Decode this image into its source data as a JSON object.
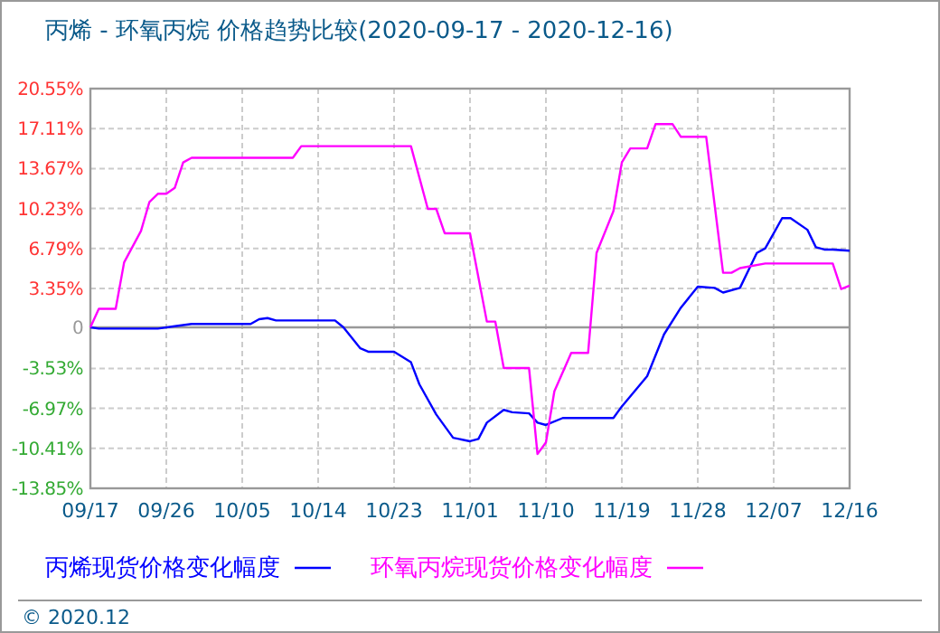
{
  "chart_data": {
    "type": "line",
    "title": "丙烯 - 环氧丙烷 价格趋势比较(2020-09-17 - 2020-12-16)",
    "xlim": [
      "2020-09-17",
      "2020-12-16"
    ],
    "xticks": [
      {
        "value": "2020-09-17",
        "label": "09/17"
      },
      {
        "value": "2020-09-26",
        "label": "09/26"
      },
      {
        "value": "2020-10-05",
        "label": "10/05"
      },
      {
        "value": "2020-10-14",
        "label": "10/14"
      },
      {
        "value": "2020-10-23",
        "label": "10/23"
      },
      {
        "value": "2020-11-01",
        "label": "11/01"
      },
      {
        "value": "2020-11-10",
        "label": "11/10"
      },
      {
        "value": "2020-11-19",
        "label": "11/19"
      },
      {
        "value": "2020-11-28",
        "label": "11/28"
      },
      {
        "value": "2020-12-07",
        "label": "12/07"
      },
      {
        "value": "2020-12-16",
        "label": "12/16"
      }
    ],
    "ylim": [
      -13.85,
      20.55
    ],
    "yticks": [
      {
        "value": -13.85,
        "label": "-13.85%"
      },
      {
        "value": -10.41,
        "label": "-10.41%"
      },
      {
        "value": -6.97,
        "label": "-6.97%"
      },
      {
        "value": -3.53,
        "label": "-3.53%"
      },
      0,
      {
        "value": 3.35,
        "label": "3.35%"
      },
      {
        "value": 6.79,
        "label": "6.79%"
      },
      {
        "value": 10.23,
        "label": "10.23%"
      },
      {
        "value": 13.67,
        "label": "13.67%"
      },
      {
        "value": 17.11,
        "label": "17.11%"
      },
      {
        "value": 20.55,
        "label": "20.55%"
      }
    ],
    "grid": true,
    "legend": "bottom",
    "marker": "none",
    "line_style": "solid",
    "ref_lines": [
      {
        "axis": "y",
        "value": 0,
        "color": "#999999"
      }
    ],
    "annotations": [
      "© 2020.12"
    ],
    "series": [
      {
        "name": "丙烯现货价格变化幅度",
        "color": "#0000ff",
        "x": [
          "2020-09-17",
          "2020-09-18",
          "2020-09-25",
          "2020-09-27",
          "2020-09-29",
          "2020-10-06",
          "2020-10-07",
          "2020-10-08",
          "2020-10-09",
          "2020-10-16",
          "2020-10-17",
          "2020-10-19",
          "2020-10-20",
          "2020-10-23",
          "2020-10-25",
          "2020-10-26",
          "2020-10-28",
          "2020-10-30",
          "2020-11-01",
          "2020-11-02",
          "2020-11-03",
          "2020-11-05",
          "2020-11-06",
          "2020-11-08",
          "2020-11-09",
          "2020-11-10",
          "2020-11-12",
          "2020-11-18",
          "2020-11-19",
          "2020-11-22",
          "2020-11-24",
          "2020-11-26",
          "2020-11-28",
          "2020-11-30",
          "2020-12-01",
          "2020-12-03",
          "2020-12-05",
          "2020-12-06",
          "2020-12-08",
          "2020-12-09",
          "2020-12-11",
          "2020-12-12",
          "2020-12-13",
          "2020-12-14",
          "2020-12-16"
        ],
        "values": [
          0,
          -0.1,
          -0.1,
          0.1,
          0.3,
          0.3,
          0.7,
          0.8,
          0.6,
          0.6,
          0,
          -1.8,
          -2.1,
          -2.1,
          -3.0,
          -4.9,
          -7.5,
          -9.5,
          -9.8,
          -9.6,
          -8.2,
          -7.1,
          -7.3,
          -7.4,
          -8.2,
          -8.4,
          -7.8,
          -7.8,
          -6.8,
          -4.2,
          -0.6,
          1.7,
          3.5,
          3.4,
          3.0,
          3.4,
          6.4,
          6.8,
          9.4,
          9.4,
          8.4,
          6.9,
          6.7,
          6.7,
          6.6
        ]
      },
      {
        "name": "环氧丙烷现货价格变化幅度",
        "color": "#ff00ff",
        "x": [
          "2020-09-17",
          "2020-09-18",
          "2020-09-20",
          "2020-09-21",
          "2020-09-23",
          "2020-09-24",
          "2020-09-25",
          "2020-09-26",
          "2020-09-27",
          "2020-09-28",
          "2020-09-29",
          "2020-10-11",
          "2020-10-12",
          "2020-10-25",
          "2020-10-27",
          "2020-10-28",
          "2020-10-29",
          "2020-11-01",
          "2020-11-03",
          "2020-11-04",
          "2020-11-05",
          "2020-11-08",
          "2020-11-09",
          "2020-11-10",
          "2020-11-11",
          "2020-11-13",
          "2020-11-15",
          "2020-11-16",
          "2020-11-18",
          "2020-11-19",
          "2020-11-20",
          "2020-11-22",
          "2020-11-23",
          "2020-11-25",
          "2020-11-26",
          "2020-11-29",
          "2020-12-01",
          "2020-12-02",
          "2020-12-03",
          "2020-12-06",
          "2020-12-14",
          "2020-12-15",
          "2020-12-16"
        ],
        "values": [
          0,
          1.6,
          1.6,
          5.6,
          8.3,
          10.8,
          11.5,
          11.5,
          12.0,
          14.2,
          14.6,
          14.6,
          15.6,
          15.6,
          10.2,
          10.2,
          8.1,
          8.1,
          0.5,
          0.5,
          -3.5,
          -3.5,
          -10.9,
          -9.9,
          -5.5,
          -2.2,
          -2.2,
          6.4,
          10.0,
          14.2,
          15.4,
          15.4,
          17.5,
          17.5,
          16.4,
          16.4,
          4.7,
          4.7,
          5.1,
          5.5,
          5.5,
          3.3,
          3.6
        ]
      }
    ]
  }
}
